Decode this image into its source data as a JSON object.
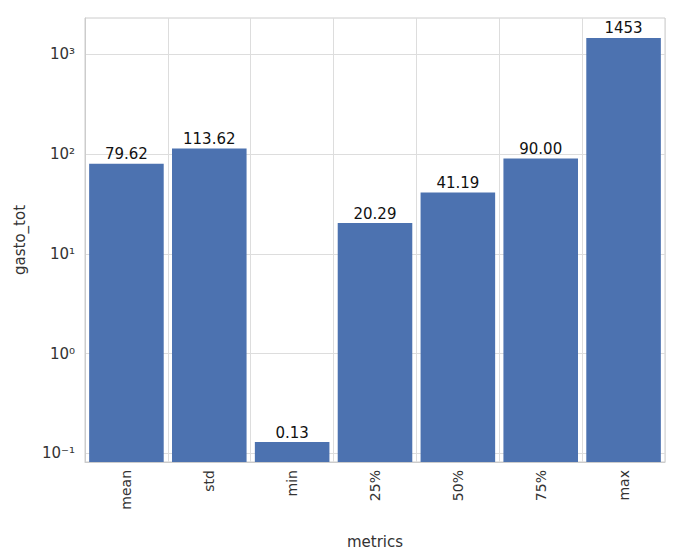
{
  "chart_data": {
    "type": "bar",
    "x_label": "metrics",
    "y_label": "gasto_tot",
    "categories": [
      "mean",
      "std",
      "min",
      "25%",
      "50%",
      "75%",
      "max"
    ],
    "values": [
      79.62,
      113.62,
      0.13,
      20.29,
      41.19,
      90.0,
      1453
    ],
    "value_labels": [
      "79.62",
      "113.62",
      "0.13",
      "20.29",
      "41.19",
      "90.00",
      "1453"
    ],
    "color": "#4c72b0",
    "ylim": [
      0.082,
      2300
    ],
    "yticks": [
      {
        "value": 0.1,
        "label": "10⁻¹"
      },
      {
        "value": 1,
        "label": "10⁰"
      },
      {
        "value": 10,
        "label": "10¹"
      },
      {
        "value": 100,
        "label": "10²"
      },
      {
        "value": 1000,
        "label": "10³"
      }
    ],
    "log": "y",
    "grid": true,
    "data_labels": true
  }
}
